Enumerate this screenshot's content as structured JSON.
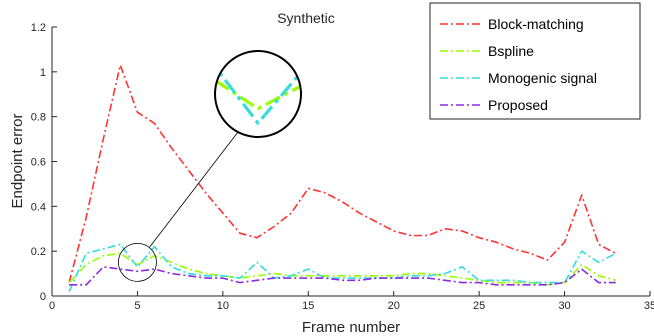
{
  "chart_data": {
    "type": "line",
    "title": "Synthetic",
    "xlabel": "Frame  number",
    "ylabel": "Endpoint error",
    "xlim": [
      0,
      35
    ],
    "ylim": [
      0,
      1.2
    ],
    "x_ticks": [
      0,
      5,
      10,
      15,
      20,
      25,
      30,
      35
    ],
    "y_ticks": [
      0,
      0.2,
      0.4,
      0.6,
      0.8,
      1,
      1.2
    ],
    "x_tick_labels": [
      "0",
      "5",
      "10",
      "15",
      "20",
      "25",
      "30",
      "35"
    ],
    "y_tick_labels": [
      "0",
      "0.2",
      "0.4",
      "0.6",
      "0.8",
      "1",
      "1.2"
    ],
    "grid": false,
    "legend_position": "top-right",
    "x": [
      1,
      2,
      3,
      4,
      5,
      6,
      7,
      8,
      9,
      10,
      11,
      12,
      13,
      14,
      15,
      16,
      17,
      18,
      19,
      20,
      21,
      22,
      23,
      24,
      25,
      26,
      27,
      28,
      29,
      30,
      31,
      32,
      33
    ],
    "series": [
      {
        "name": "Block-matching",
        "color": "#ff3333",
        "dash": "dash-dot",
        "values": [
          0.06,
          0.35,
          0.7,
          1.03,
          0.82,
          0.77,
          0.66,
          0.56,
          0.46,
          0.37,
          0.28,
          0.26,
          0.31,
          0.37,
          0.48,
          0.46,
          0.42,
          0.37,
          0.33,
          0.29,
          0.27,
          0.27,
          0.3,
          0.29,
          0.26,
          0.24,
          0.21,
          0.19,
          0.16,
          0.24,
          0.45,
          0.23,
          0.19
        ]
      },
      {
        "name": "Bspline",
        "color": "#99ff00",
        "dash": "dash-dot",
        "values": [
          0.06,
          0.14,
          0.18,
          0.19,
          0.14,
          0.18,
          0.15,
          0.12,
          0.1,
          0.09,
          0.08,
          0.09,
          0.1,
          0.09,
          0.09,
          0.09,
          0.09,
          0.09,
          0.09,
          0.09,
          0.1,
          0.1,
          0.09,
          0.08,
          0.07,
          0.06,
          0.06,
          0.06,
          0.05,
          0.06,
          0.14,
          0.09,
          0.07
        ]
      },
      {
        "name": "Monogenic signal",
        "color": "#33dddd",
        "dash": "dash-dot",
        "values": [
          0.02,
          0.19,
          0.21,
          0.23,
          0.13,
          0.22,
          0.13,
          0.1,
          0.09,
          0.09,
          0.08,
          0.15,
          0.08,
          0.09,
          0.12,
          0.08,
          0.08,
          0.08,
          0.08,
          0.08,
          0.09,
          0.09,
          0.1,
          0.13,
          0.07,
          0.07,
          0.07,
          0.06,
          0.06,
          0.06,
          0.2,
          0.15,
          0.19
        ]
      },
      {
        "name": "Proposed",
        "color": "#8a2be2",
        "dash": "dash-dot",
        "values": [
          0.05,
          0.05,
          0.13,
          0.12,
          0.11,
          0.12,
          0.1,
          0.09,
          0.08,
          0.08,
          0.06,
          0.07,
          0.08,
          0.08,
          0.08,
          0.08,
          0.07,
          0.07,
          0.08,
          0.08,
          0.08,
          0.08,
          0.07,
          0.06,
          0.06,
          0.05,
          0.05,
          0.05,
          0.05,
          0.06,
          0.12,
          0.06,
          0.06
        ]
      }
    ],
    "inset": {
      "center_x": 5,
      "center_y": 0.15,
      "description_shape": "circle"
    }
  }
}
